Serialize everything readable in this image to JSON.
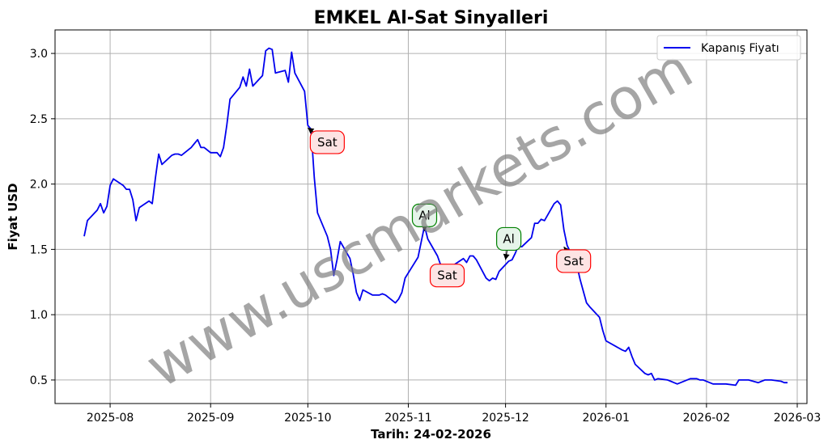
{
  "chart_data": {
    "type": "line",
    "title": "EMKEL Al-Sat Sinyalleri",
    "xlabel": "Tarih: 24-02-2026",
    "ylabel": "Fiyat USD",
    "watermark": "www.uscmarkets.com",
    "grid": true,
    "legend_position": "top-right",
    "x_ticks": [
      "2025-08",
      "2025-09",
      "2025-10",
      "2025-11",
      "2025-12",
      "2026-01",
      "2026-02",
      "2026-03"
    ],
    "y_ticks": [
      "0.5",
      "1.0",
      "1.5",
      "2.0",
      "2.5",
      "3.0"
    ],
    "x_range": [
      "2025-07-15",
      "2026-03-04"
    ],
    "ylim": [
      0.32,
      3.18
    ],
    "series": [
      {
        "name": "Kapanış Fiyatı",
        "color": "#0000ee",
        "points": [
          [
            "2025-07-24",
            1.6
          ],
          [
            "2025-07-25",
            1.72
          ],
          [
            "2025-07-28",
            1.8
          ],
          [
            "2025-07-29",
            1.85
          ],
          [
            "2025-07-30",
            1.78
          ],
          [
            "2025-07-31",
            1.83
          ],
          [
            "2025-08-01",
            1.99
          ],
          [
            "2025-08-02",
            2.04
          ],
          [
            "2025-08-05",
            1.99
          ],
          [
            "2025-08-06",
            1.96
          ],
          [
            "2025-08-07",
            1.96
          ],
          [
            "2025-08-08",
            1.88
          ],
          [
            "2025-08-09",
            1.72
          ],
          [
            "2025-08-10",
            1.82
          ],
          [
            "2025-08-13",
            1.87
          ],
          [
            "2025-08-14",
            1.85
          ],
          [
            "2025-08-15",
            2.05
          ],
          [
            "2025-08-16",
            2.23
          ],
          [
            "2025-08-17",
            2.15
          ],
          [
            "2025-08-20",
            2.22
          ],
          [
            "2025-08-21",
            2.23
          ],
          [
            "2025-08-22",
            2.23
          ],
          [
            "2025-08-23",
            2.22
          ],
          [
            "2025-08-26",
            2.28
          ],
          [
            "2025-08-27",
            2.31
          ],
          [
            "2025-08-28",
            2.34
          ],
          [
            "2025-08-29",
            2.28
          ],
          [
            "2025-08-30",
            2.28
          ],
          [
            "2025-09-01",
            2.24
          ],
          [
            "2025-09-02",
            2.24
          ],
          [
            "2025-09-03",
            2.24
          ],
          [
            "2025-09-04",
            2.21
          ],
          [
            "2025-09-05",
            2.28
          ],
          [
            "2025-09-06",
            2.45
          ],
          [
            "2025-09-07",
            2.65
          ],
          [
            "2025-09-10",
            2.74
          ],
          [
            "2025-09-11",
            2.82
          ],
          [
            "2025-09-12",
            2.75
          ],
          [
            "2025-09-13",
            2.88
          ],
          [
            "2025-09-14",
            2.75
          ],
          [
            "2025-09-17",
            2.83
          ],
          [
            "2025-09-18",
            3.02
          ],
          [
            "2025-09-19",
            3.04
          ],
          [
            "2025-09-20",
            3.03
          ],
          [
            "2025-09-21",
            2.85
          ],
          [
            "2025-09-24",
            2.87
          ],
          [
            "2025-09-25",
            2.78
          ],
          [
            "2025-09-26",
            3.01
          ],
          [
            "2025-09-27",
            2.85
          ],
          [
            "2025-09-30",
            2.71
          ],
          [
            "2025-10-01",
            2.45
          ],
          [
            "2025-10-02",
            2.42
          ],
          [
            "2025-10-03",
            2.05
          ],
          [
            "2025-10-04",
            1.78
          ],
          [
            "2025-10-07",
            1.6
          ],
          [
            "2025-10-08",
            1.5
          ],
          [
            "2025-10-09",
            1.3
          ],
          [
            "2025-10-10",
            1.42
          ],
          [
            "2025-10-11",
            1.56
          ],
          [
            "2025-10-14",
            1.43
          ],
          [
            "2025-10-15",
            1.31
          ],
          [
            "2025-10-16",
            1.17
          ],
          [
            "2025-10-17",
            1.11
          ],
          [
            "2025-10-18",
            1.19
          ],
          [
            "2025-10-21",
            1.15
          ],
          [
            "2025-10-22",
            1.15
          ],
          [
            "2025-10-23",
            1.15
          ],
          [
            "2025-10-24",
            1.16
          ],
          [
            "2025-10-25",
            1.15
          ],
          [
            "2025-10-28",
            1.09
          ],
          [
            "2025-10-29",
            1.12
          ],
          [
            "2025-10-30",
            1.17
          ],
          [
            "2025-10-31",
            1.28
          ],
          [
            "2025-11-04",
            1.44
          ],
          [
            "2025-11-05",
            1.56
          ],
          [
            "2025-11-06",
            1.68
          ],
          [
            "2025-11-07",
            1.58
          ],
          [
            "2025-11-10",
            1.45
          ],
          [
            "2025-11-11",
            1.38
          ],
          [
            "2025-11-12",
            1.38
          ],
          [
            "2025-11-13",
            1.34
          ],
          [
            "2025-11-14",
            1.38
          ],
          [
            "2025-11-15",
            1.38
          ],
          [
            "2025-11-18",
            1.43
          ],
          [
            "2025-11-19",
            1.4
          ],
          [
            "2025-11-20",
            1.45
          ],
          [
            "2025-11-21",
            1.45
          ],
          [
            "2025-11-22",
            1.42
          ],
          [
            "2025-11-25",
            1.28
          ],
          [
            "2025-11-26",
            1.26
          ],
          [
            "2025-11-27",
            1.28
          ],
          [
            "2025-11-28",
            1.27
          ],
          [
            "2025-11-29",
            1.33
          ],
          [
            "2025-12-02",
            1.41
          ],
          [
            "2025-12-03",
            1.42
          ],
          [
            "2025-12-04",
            1.47
          ],
          [
            "2025-12-05",
            1.53
          ],
          [
            "2025-12-06",
            1.52
          ],
          [
            "2025-12-09",
            1.59
          ],
          [
            "2025-12-10",
            1.7
          ],
          [
            "2025-12-11",
            1.7
          ],
          [
            "2025-12-12",
            1.73
          ],
          [
            "2025-12-13",
            1.72
          ],
          [
            "2025-12-16",
            1.85
          ],
          [
            "2025-12-17",
            1.87
          ],
          [
            "2025-12-18",
            1.84
          ],
          [
            "2025-12-19",
            1.65
          ],
          [
            "2025-12-20",
            1.53
          ],
          [
            "2025-12-23",
            1.38
          ],
          [
            "2025-12-24",
            1.27
          ],
          [
            "2025-12-25",
            1.18
          ],
          [
            "2025-12-26",
            1.09
          ],
          [
            "2025-12-27",
            1.06
          ],
          [
            "2025-12-30",
            0.98
          ],
          [
            "2025-12-31",
            0.88
          ],
          [
            "2026-01-01",
            0.8
          ],
          [
            "2026-01-06",
            0.73
          ],
          [
            "2026-01-07",
            0.72
          ],
          [
            "2026-01-08",
            0.75
          ],
          [
            "2026-01-09",
            0.68
          ],
          [
            "2026-01-10",
            0.62
          ],
          [
            "2026-01-13",
            0.55
          ],
          [
            "2026-01-14",
            0.54
          ],
          [
            "2026-01-15",
            0.55
          ],
          [
            "2026-01-16",
            0.5
          ],
          [
            "2026-01-17",
            0.51
          ],
          [
            "2026-01-20",
            0.5
          ],
          [
            "2026-01-21",
            0.49
          ],
          [
            "2026-01-22",
            0.48
          ],
          [
            "2026-01-23",
            0.47
          ],
          [
            "2026-01-24",
            0.48
          ],
          [
            "2026-01-27",
            0.51
          ],
          [
            "2026-01-28",
            0.51
          ],
          [
            "2026-01-29",
            0.51
          ],
          [
            "2026-01-30",
            0.5
          ],
          [
            "2026-01-31",
            0.5
          ],
          [
            "2026-02-03",
            0.47
          ],
          [
            "2026-02-04",
            0.47
          ],
          [
            "2026-02-05",
            0.47
          ],
          [
            "2026-02-06",
            0.47
          ],
          [
            "2026-02-07",
            0.47
          ],
          [
            "2026-02-10",
            0.46
          ],
          [
            "2026-02-11",
            0.5
          ],
          [
            "2026-02-12",
            0.5
          ],
          [
            "2026-02-13",
            0.5
          ],
          [
            "2026-02-14",
            0.5
          ],
          [
            "2026-02-17",
            0.48
          ],
          [
            "2026-02-18",
            0.49
          ],
          [
            "2026-02-19",
            0.5
          ],
          [
            "2026-02-20",
            0.5
          ],
          [
            "2026-02-21",
            0.5
          ],
          [
            "2026-02-24",
            0.49
          ],
          [
            "2026-02-25",
            0.48
          ],
          [
            "2026-02-26",
            0.48
          ]
        ]
      }
    ],
    "signals": [
      {
        "type": "Sat",
        "date": "2025-10-01",
        "price": 2.43,
        "label_date": "2025-10-07",
        "label_price": 2.32,
        "color": "#ff0000",
        "fill": "#fde4e4"
      },
      {
        "type": "Al",
        "date": "2025-11-06",
        "price": 1.64,
        "label_date": "2025-11-06",
        "label_price": 1.76,
        "color": "#008000",
        "fill": "#e6f4ea"
      },
      {
        "type": "Sat",
        "date": "2025-11-11",
        "price": 1.38,
        "label_date": "2025-11-13",
        "label_price": 1.3,
        "color": "#ff0000",
        "fill": "#fde4e4"
      },
      {
        "type": "Al",
        "date": "2025-12-01",
        "price": 1.42,
        "label_date": "2025-12-02",
        "label_price": 1.58,
        "color": "#008000",
        "fill": "#e6f4ea"
      },
      {
        "type": "Sat",
        "date": "2025-12-19",
        "price": 1.52,
        "label_date": "2025-12-22",
        "label_price": 1.41,
        "color": "#ff0000",
        "fill": "#fde4e4"
      }
    ]
  }
}
